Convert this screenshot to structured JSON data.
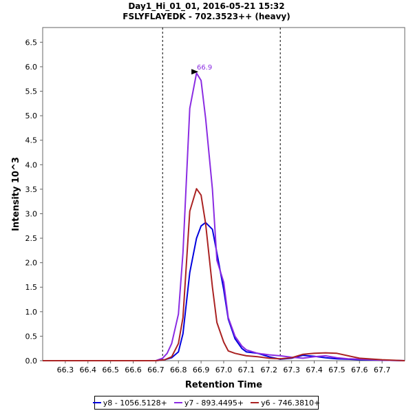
{
  "chart_data": {
    "type": "line",
    "title": "Day1_Hi_01_01, 2016-05-21 15:32",
    "subtitle": "FSLYFLAYEDK - 702.3523++ (heavy)",
    "xlabel": "Retention Time",
    "ylabel": "Intensity 10^3",
    "xlim": [
      66.2,
      67.8
    ],
    "ylim": [
      0,
      6.8
    ],
    "x_ticks": [
      "66.3",
      "66.4",
      "66.5",
      "66.6",
      "66.7",
      "66.8",
      "66.9",
      "67.0",
      "67.1",
      "67.2",
      "67.3",
      "67.4",
      "67.5",
      "67.6",
      "67.7"
    ],
    "y_ticks": [
      "0.0",
      "0.5",
      "1.0",
      "1.5",
      "2.0",
      "2.5",
      "3.0",
      "3.5",
      "4.0",
      "4.5",
      "5.0",
      "5.5",
      "6.0",
      "6.5"
    ],
    "grid": false,
    "legend_position": "bottom",
    "integration_bounds": [
      66.73,
      67.25
    ],
    "peak_annotation": {
      "label": "66.9",
      "x": 66.9,
      "y": 5.87,
      "color": "#8a2be2"
    },
    "series": [
      {
        "name": "y8 - 1056.5128+",
        "color": "#0000dd",
        "x": [
          66.2,
          66.5,
          66.7,
          66.74,
          66.77,
          66.8,
          66.82,
          66.85,
          66.88,
          66.9,
          66.92,
          66.95,
          66.97,
          67.0,
          67.02,
          67.05,
          67.08,
          67.1,
          67.15,
          67.2,
          67.25,
          67.3,
          67.35,
          67.4,
          67.45,
          67.5,
          67.55,
          67.6,
          67.7,
          67.8
        ],
        "y": [
          0.0,
          0.0,
          0.0,
          0.02,
          0.06,
          0.18,
          0.55,
          1.8,
          2.5,
          2.75,
          2.82,
          2.68,
          2.2,
          1.45,
          0.85,
          0.45,
          0.25,
          0.18,
          0.15,
          0.08,
          0.03,
          0.05,
          0.11,
          0.09,
          0.06,
          0.04,
          0.03,
          0.02,
          0.01,
          0.0
        ]
      },
      {
        "name": "y7 - 893.4495+",
        "color": "#8a2be2",
        "x": [
          66.2,
          66.5,
          66.7,
          66.73,
          66.75,
          66.77,
          66.8,
          66.82,
          66.85,
          66.88,
          66.9,
          66.92,
          66.95,
          66.97,
          67.0,
          67.02,
          67.05,
          67.08,
          67.1,
          67.15,
          67.2,
          67.25,
          67.3,
          67.35,
          67.4,
          67.45,
          67.5,
          67.55,
          67.6,
          67.7,
          67.8
        ],
        "y": [
          0.0,
          0.0,
          0.0,
          0.05,
          0.15,
          0.35,
          0.95,
          2.2,
          5.15,
          5.87,
          5.72,
          4.95,
          3.5,
          2.05,
          1.6,
          0.88,
          0.5,
          0.3,
          0.22,
          0.15,
          0.12,
          0.1,
          0.07,
          0.05,
          0.08,
          0.1,
          0.06,
          0.04,
          0.03,
          0.01,
          0.0
        ]
      },
      {
        "name": "y6 - 746.3810+",
        "color": "#aa2222",
        "x": [
          66.2,
          66.5,
          66.7,
          66.74,
          66.77,
          66.8,
          66.82,
          66.85,
          66.88,
          66.9,
          66.92,
          66.95,
          66.97,
          67.0,
          67.02,
          67.05,
          67.08,
          67.1,
          67.15,
          67.2,
          67.25,
          67.3,
          67.35,
          67.4,
          67.45,
          67.5,
          67.55,
          67.6,
          67.7,
          67.8
        ],
        "y": [
          0.0,
          0.0,
          0.0,
          0.02,
          0.08,
          0.35,
          0.88,
          3.05,
          3.51,
          3.38,
          2.8,
          1.5,
          0.78,
          0.38,
          0.2,
          0.15,
          0.12,
          0.1,
          0.08,
          0.05,
          0.04,
          0.06,
          0.13,
          0.15,
          0.16,
          0.15,
          0.1,
          0.05,
          0.02,
          0.0
        ]
      }
    ]
  }
}
